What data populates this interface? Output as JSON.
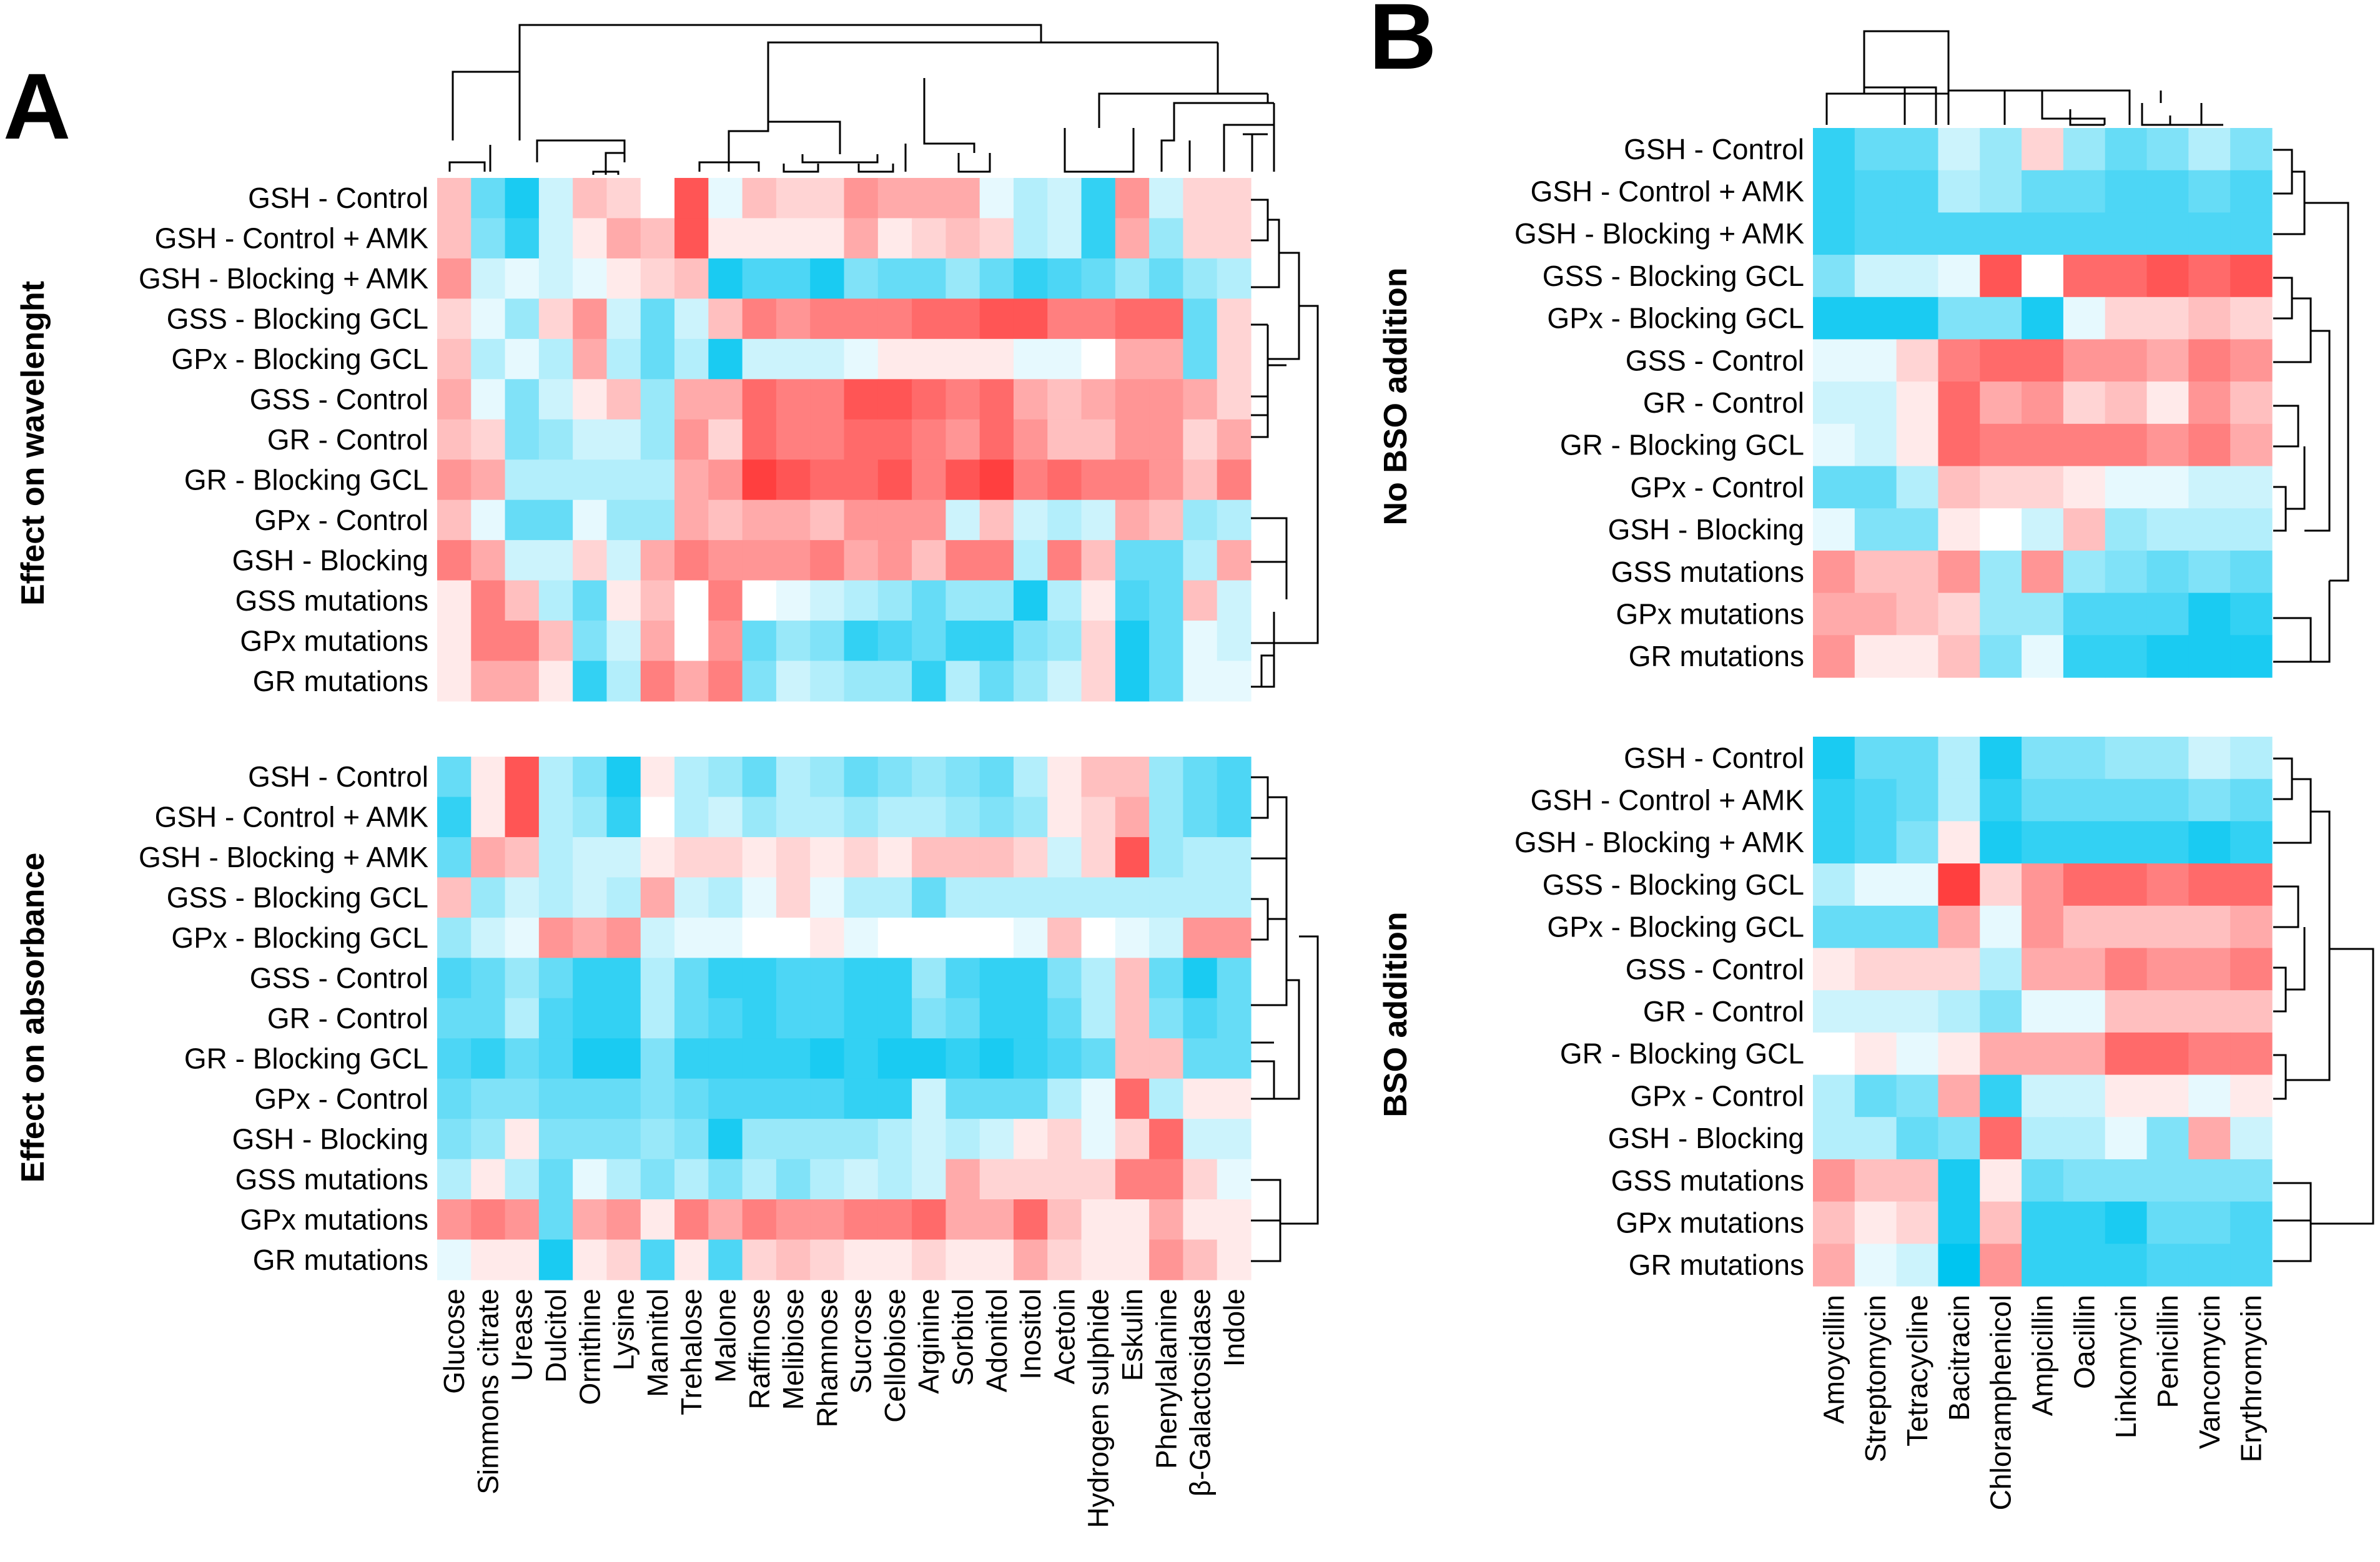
{
  "panels": {
    "A": {
      "letter": "A",
      "top_title": "Effect on wavelenght",
      "bottom_title": "Effect on absorbance"
    },
    "B": {
      "letter": "B",
      "top_title": "No BSO addition",
      "bottom_title": "BSO addition"
    }
  },
  "colors": {
    "negative": "#00c5f0",
    "neutral": "#ffffff",
    "positive": "#ff2a2a"
  },
  "chart_data": [
    {
      "type": "heatmap",
      "id": "A-wavelength",
      "title": "Effect on wavelenght",
      "rows": [
        "GSH - Control",
        "GSH - Control + AMK",
        "GSH - Blocking + AMK",
        "GSS - Blocking GCL",
        "GPx - Blocking GCL",
        "GSS - Control",
        "GR - Control",
        "GR - Blocking GCL",
        "GPx - Control",
        "GSH - Blocking",
        "GSS mutations",
        "GPx mutations",
        "GR mutations"
      ],
      "columns": [
        "Glucose",
        "Simmons citrate",
        "Urease",
        "Dulcitol",
        "Ornithine",
        "Lysine",
        "Mannitol",
        "Trehalose",
        "Malone",
        "Raffinose",
        "Melibiose",
        "Rhamnose",
        "Sucrose",
        "Cellobiose",
        "Arginine",
        "Sorbitol",
        "Adonitol",
        "Inositol",
        "Acetoin",
        "Hydrogen sulphide",
        "Eskulin",
        "Phenylalanine",
        "β-Galactosidase",
        "Indole"
      ],
      "value_range": [
        -1,
        1
      ],
      "values": [
        [
          0.3,
          -0.6,
          -0.9,
          -0.2,
          0.3,
          0.2,
          0.0,
          0.8,
          -0.1,
          0.3,
          0.2,
          0.2,
          0.5,
          0.4,
          0.4,
          0.4,
          -0.1,
          -0.3,
          -0.2,
          -0.8,
          0.5,
          -0.2,
          0.2,
          0.2
        ],
        [
          0.3,
          -0.5,
          -0.8,
          -0.2,
          0.1,
          0.4,
          0.3,
          0.8,
          0.1,
          0.1,
          0.1,
          0.1,
          0.4,
          0.1,
          0.2,
          0.3,
          0.2,
          -0.3,
          -0.2,
          -0.8,
          0.4,
          -0.4,
          0.2,
          0.2
        ],
        [
          0.5,
          -0.2,
          -0.1,
          -0.2,
          -0.1,
          0.1,
          0.2,
          0.3,
          -0.9,
          -0.7,
          -0.7,
          -0.9,
          -0.5,
          -0.6,
          -0.6,
          -0.4,
          -0.6,
          -0.8,
          -0.7,
          -0.6,
          -0.4,
          -0.6,
          -0.4,
          -0.3
        ],
        [
          0.2,
          -0.1,
          -0.4,
          0.2,
          0.5,
          -0.2,
          -0.6,
          -0.2,
          0.3,
          0.6,
          0.5,
          0.6,
          0.6,
          0.6,
          0.7,
          0.7,
          0.8,
          0.8,
          0.6,
          0.6,
          0.7,
          0.7,
          -0.6,
          0.2
        ],
        [
          0.3,
          -0.3,
          -0.1,
          -0.3,
          0.4,
          -0.3,
          -0.6,
          -0.3,
          -0.9,
          -0.2,
          -0.2,
          -0.2,
          -0.1,
          0.1,
          0.1,
          0.1,
          0.1,
          -0.1,
          -0.1,
          0.0,
          0.4,
          0.4,
          -0.6,
          0.2
        ],
        [
          0.4,
          -0.1,
          -0.5,
          -0.2,
          0.1,
          0.3,
          -0.4,
          0.4,
          0.4,
          0.7,
          0.6,
          0.6,
          0.8,
          0.8,
          0.7,
          0.6,
          0.7,
          0.4,
          0.3,
          0.4,
          0.5,
          0.5,
          0.4,
          0.2
        ],
        [
          0.3,
          0.2,
          -0.5,
          -0.4,
          -0.2,
          -0.2,
          -0.4,
          0.5,
          0.2,
          0.7,
          0.6,
          0.6,
          0.7,
          0.7,
          0.6,
          0.5,
          0.7,
          0.5,
          0.3,
          0.3,
          0.5,
          0.5,
          0.2,
          0.4
        ],
        [
          0.5,
          0.4,
          -0.3,
          -0.3,
          -0.3,
          -0.3,
          -0.3,
          0.4,
          0.5,
          0.9,
          0.8,
          0.7,
          0.7,
          0.8,
          0.6,
          0.8,
          0.9,
          0.6,
          0.7,
          0.6,
          0.6,
          0.5,
          0.3,
          0.6
        ],
        [
          0.3,
          -0.1,
          -0.6,
          -0.6,
          -0.1,
          -0.4,
          -0.4,
          0.4,
          0.3,
          0.4,
          0.4,
          0.3,
          0.5,
          0.5,
          0.5,
          -0.2,
          0.3,
          -0.2,
          -0.3,
          -0.2,
          0.4,
          0.3,
          -0.4,
          -0.3
        ],
        [
          0.6,
          0.4,
          -0.2,
          -0.2,
          0.2,
          -0.2,
          0.4,
          0.6,
          0.5,
          0.5,
          0.5,
          0.6,
          0.4,
          0.5,
          0.3,
          0.6,
          0.6,
          -0.3,
          0.6,
          0.3,
          -0.6,
          -0.6,
          -0.3,
          0.4
        ],
        [
          0.1,
          0.6,
          0.3,
          -0.3,
          -0.6,
          0.1,
          0.3,
          0.0,
          0.6,
          0.0,
          -0.1,
          -0.2,
          -0.3,
          -0.4,
          -0.6,
          -0.4,
          -0.4,
          -0.9,
          -0.3,
          0.1,
          -0.7,
          -0.6,
          0.3,
          -0.2
        ],
        [
          0.1,
          0.6,
          0.6,
          0.3,
          -0.5,
          -0.2,
          0.4,
          0.0,
          0.5,
          -0.6,
          -0.4,
          -0.5,
          -0.8,
          -0.7,
          -0.6,
          -0.8,
          -0.8,
          -0.5,
          -0.4,
          0.2,
          -0.9,
          -0.6,
          -0.1,
          -0.2
        ],
        [
          0.1,
          0.4,
          0.4,
          0.1,
          -0.8,
          -0.3,
          0.6,
          0.4,
          0.6,
          -0.5,
          -0.2,
          -0.3,
          -0.4,
          -0.4,
          -0.8,
          -0.3,
          -0.6,
          -0.4,
          -0.2,
          0.2,
          -0.9,
          -0.6,
          -0.1,
          -0.1
        ]
      ]
    },
    {
      "type": "heatmap",
      "id": "A-absorbance",
      "title": "Effect on absorbance",
      "rows": [
        "GSH - Control",
        "GSH - Control + AMK",
        "GSH - Blocking + AMK",
        "GSS - Blocking GCL",
        "GPx - Blocking GCL",
        "GSS - Control",
        "GR - Control",
        "GR - Blocking GCL",
        "GPx - Control",
        "GSH - Blocking",
        "GSS mutations",
        "GPx mutations",
        "GR mutations"
      ],
      "columns": [
        "Glucose",
        "Simmons citrate",
        "Urease",
        "Dulcitol",
        "Ornithine",
        "Lysine",
        "Mannitol",
        "Trehalose",
        "Malone",
        "Raffinose",
        "Melibiose",
        "Rhamnose",
        "Sucrose",
        "Cellobiose",
        "Arginine",
        "Sorbitol",
        "Adonitol",
        "Inositol",
        "Acetoin",
        "Hydrogen sulphide",
        "Eskulin",
        "Phenylalanine",
        "β-Galactosidase",
        "Indole"
      ],
      "value_range": [
        -1,
        1
      ],
      "values": [
        [
          -0.6,
          0.1,
          0.8,
          -0.3,
          -0.5,
          -0.9,
          0.1,
          -0.3,
          -0.4,
          -0.6,
          -0.3,
          -0.4,
          -0.6,
          -0.5,
          -0.4,
          -0.5,
          -0.6,
          -0.3,
          0.1,
          0.3,
          0.3,
          -0.4,
          -0.6,
          -0.7
        ],
        [
          -0.8,
          0.1,
          0.8,
          -0.3,
          -0.4,
          -0.8,
          0.0,
          -0.3,
          -0.2,
          -0.4,
          -0.3,
          -0.3,
          -0.4,
          -0.3,
          -0.3,
          -0.4,
          -0.5,
          -0.4,
          0.1,
          0.2,
          0.4,
          -0.4,
          -0.6,
          -0.7
        ],
        [
          -0.6,
          0.4,
          0.3,
          -0.3,
          -0.2,
          -0.2,
          0.1,
          0.2,
          0.2,
          0.1,
          0.2,
          0.1,
          0.2,
          0.1,
          0.3,
          0.3,
          0.3,
          0.2,
          -0.2,
          0.2,
          0.8,
          -0.4,
          -0.3,
          -0.3
        ],
        [
          0.3,
          -0.4,
          -0.2,
          -0.3,
          -0.2,
          -0.3,
          0.4,
          -0.2,
          -0.3,
          -0.1,
          0.2,
          -0.1,
          -0.3,
          -0.3,
          -0.6,
          -0.3,
          -0.3,
          -0.3,
          -0.3,
          -0.3,
          -0.3,
          -0.3,
          -0.3,
          -0.3
        ],
        [
          -0.4,
          -0.2,
          -0.1,
          0.5,
          0.4,
          0.5,
          -0.2,
          -0.1,
          -0.1,
          0.0,
          0.0,
          0.1,
          -0.1,
          0.0,
          0.0,
          0.0,
          0.0,
          -0.1,
          0.3,
          0.0,
          -0.1,
          -0.2,
          0.5,
          0.5
        ],
        [
          -0.7,
          -0.6,
          -0.4,
          -0.6,
          -0.8,
          -0.8,
          -0.3,
          -0.6,
          -0.8,
          -0.8,
          -0.7,
          -0.7,
          -0.8,
          -0.8,
          -0.4,
          -0.7,
          -0.8,
          -0.8,
          -0.5,
          -0.3,
          0.3,
          -0.6,
          -0.9,
          -0.6
        ],
        [
          -0.6,
          -0.6,
          -0.3,
          -0.7,
          -0.8,
          -0.8,
          -0.3,
          -0.6,
          -0.7,
          -0.8,
          -0.7,
          -0.7,
          -0.8,
          -0.8,
          -0.5,
          -0.6,
          -0.8,
          -0.8,
          -0.6,
          -0.3,
          0.3,
          -0.5,
          -0.7,
          -0.6
        ],
        [
          -0.7,
          -0.8,
          -0.6,
          -0.7,
          -0.9,
          -0.9,
          -0.5,
          -0.8,
          -0.8,
          -0.8,
          -0.8,
          -0.9,
          -0.8,
          -0.9,
          -0.9,
          -0.8,
          -0.9,
          -0.8,
          -0.7,
          -0.6,
          0.3,
          0.3,
          -0.6,
          -0.6
        ],
        [
          -0.6,
          -0.5,
          -0.5,
          -0.6,
          -0.6,
          -0.6,
          -0.5,
          -0.6,
          -0.7,
          -0.7,
          -0.7,
          -0.7,
          -0.8,
          -0.8,
          -0.2,
          -0.6,
          -0.6,
          -0.6,
          -0.3,
          -0.1,
          0.7,
          -0.3,
          0.1,
          0.1
        ],
        [
          -0.5,
          -0.4,
          0.1,
          -0.5,
          -0.5,
          -0.5,
          -0.4,
          -0.5,
          -0.9,
          -0.4,
          -0.4,
          -0.4,
          -0.4,
          -0.3,
          -0.2,
          -0.3,
          -0.2,
          0.1,
          0.2,
          -0.1,
          0.2,
          0.7,
          -0.2,
          -0.2
        ],
        [
          -0.3,
          0.1,
          -0.3,
          -0.6,
          -0.1,
          -0.3,
          -0.5,
          -0.3,
          -0.5,
          -0.3,
          -0.5,
          -0.3,
          -0.2,
          -0.3,
          -0.2,
          0.4,
          0.2,
          0.2,
          0.2,
          0.2,
          0.6,
          0.6,
          0.2,
          -0.1
        ],
        [
          0.5,
          0.6,
          0.5,
          -0.6,
          0.4,
          0.5,
          0.1,
          0.6,
          0.4,
          0.6,
          0.5,
          0.5,
          0.6,
          0.6,
          0.7,
          0.4,
          0.4,
          0.7,
          0.3,
          0.1,
          0.1,
          0.4,
          0.1,
          0.1
        ],
        [
          -0.1,
          0.1,
          0.1,
          -0.9,
          0.1,
          0.2,
          -0.7,
          0.1,
          -0.7,
          0.2,
          0.3,
          0.2,
          0.1,
          0.1,
          0.2,
          0.1,
          0.1,
          0.4,
          0.2,
          0.1,
          0.1,
          0.5,
          0.3,
          0.1
        ]
      ]
    },
    {
      "type": "heatmap",
      "id": "B-no-bso",
      "title": "No BSO addition",
      "rows": [
        "GSH - Control",
        "GSH - Control + AMK",
        "GSH - Blocking + AMK",
        "GSS - Blocking GCL",
        "GPx - Blocking GCL",
        "GSS - Control",
        "GR - Control",
        "GR - Blocking GCL",
        "GPx - Control",
        "GSH - Blocking",
        "GSS mutations",
        "GPx mutations",
        "GR mutations"
      ],
      "columns": [
        "Amoycillin",
        "Streptomycin",
        "Tetracycline",
        "Bacitracin",
        "Chloramphenicol",
        "Ampicillin",
        "Oacillin",
        "Linkomycin",
        "Penicillin",
        "Vancomycin",
        "Erythromycin"
      ],
      "value_range": [
        -1,
        1
      ],
      "values": [
        [
          -0.8,
          -0.6,
          -0.6,
          -0.2,
          -0.4,
          0.2,
          -0.4,
          -0.6,
          -0.5,
          -0.3,
          -0.5
        ],
        [
          -0.8,
          -0.7,
          -0.7,
          -0.3,
          -0.4,
          -0.6,
          -0.6,
          -0.7,
          -0.7,
          -0.6,
          -0.7
        ],
        [
          -0.8,
          -0.7,
          -0.7,
          -0.7,
          -0.7,
          -0.7,
          -0.7,
          -0.7,
          -0.7,
          -0.7,
          -0.7
        ],
        [
          -0.5,
          -0.2,
          -0.2,
          -0.1,
          0.8,
          0.0,
          0.7,
          0.7,
          0.8,
          0.7,
          0.8
        ],
        [
          -0.9,
          -0.9,
          -0.9,
          -0.5,
          -0.5,
          -0.9,
          -0.1,
          0.2,
          0.2,
          0.3,
          0.2
        ],
        [
          -0.1,
          -0.1,
          0.2,
          0.6,
          0.7,
          0.7,
          0.5,
          0.5,
          0.4,
          0.6,
          0.5
        ],
        [
          -0.2,
          -0.2,
          0.1,
          0.7,
          0.4,
          0.5,
          0.2,
          0.3,
          0.1,
          0.5,
          0.3
        ],
        [
          -0.1,
          -0.2,
          0.1,
          0.7,
          0.6,
          0.6,
          0.6,
          0.6,
          0.5,
          0.6,
          0.4
        ],
        [
          -0.6,
          -0.6,
          -0.3,
          0.3,
          0.2,
          0.2,
          0.1,
          -0.1,
          -0.1,
          -0.2,
          -0.2
        ],
        [
          -0.1,
          -0.5,
          -0.5,
          0.1,
          0.0,
          -0.2,
          0.3,
          -0.4,
          -0.3,
          -0.3,
          -0.3
        ],
        [
          0.5,
          0.3,
          0.3,
          0.5,
          -0.4,
          0.5,
          -0.4,
          -0.5,
          -0.6,
          -0.5,
          -0.6
        ],
        [
          0.4,
          0.4,
          0.3,
          0.2,
          -0.4,
          -0.4,
          -0.7,
          -0.7,
          -0.7,
          -0.9,
          -0.8
        ],
        [
          0.5,
          0.1,
          0.1,
          0.3,
          -0.5,
          -0.1,
          -0.8,
          -0.8,
          -0.9,
          -0.9,
          -0.9
        ]
      ]
    },
    {
      "type": "heatmap",
      "id": "B-bso",
      "title": "BSO addition",
      "rows": [
        "GSH - Control",
        "GSH - Control + AMK",
        "GSH - Blocking + AMK",
        "GSS - Blocking GCL",
        "GPx - Blocking GCL",
        "GSS - Control",
        "GR - Control",
        "GR - Blocking GCL",
        "GPx - Control",
        "GSH - Blocking",
        "GSS mutations",
        "GPx mutations",
        "GR mutations"
      ],
      "columns": [
        "Amoycillin",
        "Streptomycin",
        "Tetracycline",
        "Bacitracin",
        "Chloramphenicol",
        "Ampicillin",
        "Oacillin",
        "Linkomycin",
        "Penicillin",
        "Vancomycin",
        "Erythromycin"
      ],
      "value_range": [
        -1,
        1
      ],
      "values": [
        [
          -0.9,
          -0.6,
          -0.6,
          -0.3,
          -0.9,
          -0.5,
          -0.5,
          -0.4,
          -0.4,
          -0.2,
          -0.3
        ],
        [
          -0.8,
          -0.7,
          -0.6,
          -0.3,
          -0.8,
          -0.6,
          -0.6,
          -0.6,
          -0.6,
          -0.5,
          -0.6
        ],
        [
          -0.8,
          -0.7,
          -0.5,
          0.1,
          -0.9,
          -0.8,
          -0.8,
          -0.8,
          -0.8,
          -0.9,
          -0.8
        ],
        [
          -0.3,
          -0.1,
          -0.1,
          0.9,
          0.2,
          0.5,
          0.7,
          0.7,
          0.6,
          0.7,
          0.7
        ],
        [
          -0.6,
          -0.6,
          -0.6,
          0.4,
          -0.1,
          0.5,
          0.3,
          0.3,
          0.3,
          0.3,
          0.4
        ],
        [
          0.1,
          0.2,
          0.2,
          0.2,
          -0.3,
          0.4,
          0.4,
          0.6,
          0.5,
          0.5,
          0.6
        ],
        [
          -0.2,
          -0.2,
          -0.2,
          -0.3,
          -0.5,
          -0.1,
          -0.1,
          0.3,
          0.3,
          0.3,
          0.3
        ],
        [
          0.0,
          0.1,
          -0.1,
          0.1,
          0.4,
          0.4,
          0.4,
          0.7,
          0.7,
          0.6,
          0.6
        ],
        [
          -0.3,
          -0.6,
          -0.5,
          0.4,
          -0.8,
          -0.2,
          -0.2,
          0.1,
          0.1,
          -0.1,
          0.1
        ],
        [
          -0.3,
          -0.3,
          -0.6,
          -0.5,
          0.7,
          -0.3,
          -0.3,
          -0.1,
          -0.5,
          0.4,
          -0.2
        ],
        [
          0.5,
          0.3,
          0.3,
          -0.9,
          0.1,
          -0.6,
          -0.5,
          -0.5,
          -0.5,
          -0.5,
          -0.5
        ],
        [
          0.3,
          0.1,
          0.2,
          -0.9,
          0.3,
          -0.8,
          -0.8,
          -0.9,
          -0.6,
          -0.6,
          -0.7
        ],
        [
          0.4,
          -0.1,
          -0.2,
          -1.0,
          0.5,
          -0.8,
          -0.8,
          -0.8,
          -0.7,
          -0.7,
          -0.7
        ]
      ]
    }
  ]
}
